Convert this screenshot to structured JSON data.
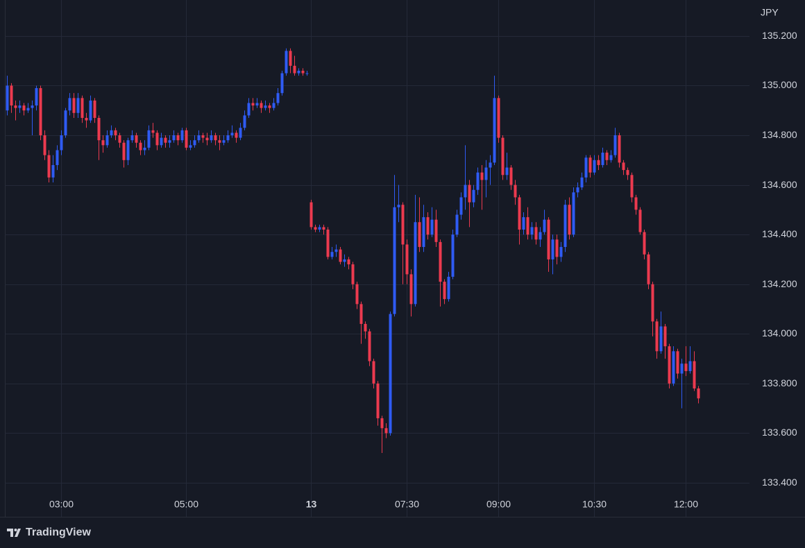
{
  "chart_data": {
    "type": "candlestick",
    "currency": "JPY",
    "brand": "TradingView",
    "up_color": "#2f5bf3",
    "down_color": "#ec3a4f",
    "grid": true,
    "ylim": [
      133.263,
      135.345
    ],
    "yticks": [
      {
        "value": 133.4,
        "label": "133.400"
      },
      {
        "value": 133.6,
        "label": "133.600"
      },
      {
        "value": 133.8,
        "label": "133.800"
      },
      {
        "value": 134.0,
        "label": "134.000"
      },
      {
        "value": 134.2,
        "label": "134.200"
      },
      {
        "value": 134.4,
        "label": "134.400"
      },
      {
        "value": 134.6,
        "label": "134.600"
      },
      {
        "value": 134.8,
        "label": "134.800"
      },
      {
        "value": 135.0,
        "label": "135.000"
      },
      {
        "value": 135.2,
        "label": "135.200"
      }
    ],
    "categories": [
      null,
      null,
      null,
      null,
      null,
      null,
      null,
      null,
      null,
      null,
      null,
      null,
      null,
      "03:00",
      null,
      null,
      null,
      null,
      null,
      null,
      null,
      null,
      null,
      null,
      null,
      null,
      null,
      null,
      null,
      null,
      null,
      null,
      null,
      null,
      null,
      null,
      null,
      null,
      null,
      null,
      null,
      null,
      null,
      "05:00",
      null,
      null,
      null,
      null,
      null,
      null,
      null,
      null,
      null,
      null,
      null,
      null,
      null,
      null,
      null,
      null,
      null,
      null,
      null,
      null,
      null,
      null,
      null,
      null,
      null,
      null,
      null,
      null,
      null,
      "13",
      null,
      null,
      null,
      null,
      null,
      null,
      null,
      null,
      null,
      null,
      null,
      null,
      null,
      null,
      null,
      null,
      null,
      null,
      null,
      null,
      null,
      null,
      "07:30",
      null,
      null,
      null,
      null,
      null,
      null,
      null,
      null,
      null,
      null,
      null,
      null,
      null,
      null,
      null,
      null,
      null,
      null,
      null,
      null,
      null,
      "09:00",
      null,
      null,
      null,
      null,
      null,
      null,
      null,
      null,
      null,
      null,
      null,
      null,
      null,
      null,
      null,
      null,
      null,
      null,
      null,
      null,
      null,
      null,
      "10:30",
      null,
      null,
      null,
      null,
      null,
      null,
      null,
      null,
      null,
      null,
      null,
      null,
      null,
      null,
      null,
      null,
      null,
      null,
      null,
      null,
      null,
      "12:00",
      null,
      null,
      null,
      null,
      null,
      null,
      null,
      null,
      null,
      null,
      null,
      null,
      null,
      null
    ],
    "bold_category": "13",
    "open": [
      134.9,
      135.0,
      134.92,
      134.91,
      134.92,
      134.9,
      134.91,
      134.92,
      134.99,
      134.8,
      134.72,
      134.63,
      134.68,
      134.74,
      134.8,
      134.9,
      134.95,
      134.89,
      134.95,
      134.87,
      134.86,
      134.94,
      134.87,
      134.78,
      134.76,
      134.8,
      134.82,
      134.8,
      134.77,
      134.7,
      134.78,
      134.8,
      134.77,
      134.74,
      134.75,
      134.82,
      134.81,
      134.76,
      134.79,
      134.77,
      134.78,
      134.8,
      134.78,
      134.82,
      134.75,
      134.76,
      134.78,
      134.8,
      134.79,
      134.78,
      134.8,
      134.78,
      134.77,
      134.78,
      134.8,
      134.81,
      134.79,
      134.83,
      134.88,
      134.93,
      134.92,
      134.93,
      134.91,
      134.92,
      134.91,
      134.93,
      134.97,
      135.05,
      135.14,
      135.08,
      135.05,
      135.06,
      135.05,
      134.53,
      134.43,
      134.42,
      134.43,
      134.42,
      134.31,
      134.33,
      134.34,
      134.29,
      134.3,
      134.28,
      134.2,
      134.12,
      134.04,
      134.01,
      133.89,
      133.8,
      133.66,
      133.62,
      133.6,
      134.08,
      134.51,
      134.52,
      134.36,
      134.24,
      134.12,
      134.45,
      134.35,
      134.47,
      134.4,
      134.46,
      134.37,
      134.21,
      134.14,
      134.23,
      134.4,
      134.48,
      134.55,
      134.6,
      134.53,
      134.58,
      134.65,
      134.62,
      134.67,
      134.69,
      134.95,
      134.79,
      134.64,
      134.67,
      134.6,
      134.55,
      134.42,
      134.47,
      134.4,
      134.43,
      134.38,
      134.41,
      134.46,
      134.3,
      134.38,
      134.31,
      134.35,
      134.52,
      134.4,
      134.57,
      134.59,
      134.63,
      134.71,
      134.65,
      134.7,
      134.68,
      134.73,
      134.7,
      134.72,
      134.8,
      134.69,
      134.66,
      134.64,
      134.55,
      134.5,
      134.41,
      134.32,
      134.2,
      134.05,
      133.93,
      134.03,
      133.95,
      133.8,
      133.93,
      133.84,
      133.88,
      133.85,
      133.89,
      133.78,
      null,
      null,
      null,
      null,
      null,
      null,
      null,
      null,
      null,
      null,
      null
    ],
    "high": [
      135.04,
      135.01,
      134.94,
      134.94,
      134.93,
      134.93,
      134.94,
      135.0,
      135.0,
      134.82,
      134.74,
      134.72,
      134.76,
      134.82,
      134.91,
      134.97,
      134.97,
      134.97,
      134.96,
      134.89,
      134.96,
      134.95,
      134.88,
      134.8,
      134.82,
      134.84,
      134.83,
      134.81,
      134.78,
      134.79,
      134.82,
      134.81,
      134.78,
      134.78,
      134.84,
      134.85,
      134.82,
      134.81,
      134.8,
      134.8,
      134.82,
      134.81,
      134.83,
      134.83,
      134.78,
      134.8,
      134.82,
      134.81,
      134.81,
      134.82,
      134.81,
      134.8,
      134.8,
      134.82,
      134.84,
      134.82,
      134.85,
      134.9,
      134.95,
      134.95,
      134.95,
      134.94,
      134.94,
      134.93,
      134.95,
      134.99,
      135.06,
      135.15,
      135.15,
      135.12,
      135.07,
      135.07,
      135.06,
      134.54,
      134.44,
      134.44,
      134.44,
      134.43,
      134.35,
      134.36,
      134.35,
      134.32,
      134.31,
      134.29,
      134.21,
      134.13,
      134.05,
      134.02,
      133.9,
      133.81,
      133.67,
      133.64,
      134.09,
      134.64,
      134.6,
      134.53,
      134.38,
      134.26,
      134.56,
      134.55,
      134.52,
      134.49,
      134.51,
      134.5,
      134.38,
      134.22,
      134.25,
      134.42,
      134.5,
      134.57,
      134.76,
      134.62,
      134.6,
      134.67,
      134.68,
      134.7,
      134.72,
      135.04,
      134.96,
      134.8,
      134.73,
      134.68,
      134.62,
      134.56,
      134.49,
      134.51,
      134.45,
      134.45,
      134.43,
      134.5,
      134.47,
      134.4,
      134.4,
      134.37,
      134.54,
      134.55,
      134.59,
      134.61,
      134.65,
      134.72,
      134.72,
      134.72,
      134.72,
      134.75,
      134.74,
      134.74,
      134.83,
      134.81,
      134.7,
      134.67,
      134.65,
      134.56,
      134.51,
      134.42,
      134.33,
      134.21,
      134.06,
      134.09,
      134.04,
      133.96,
      133.95,
      133.94,
      133.9,
      133.95,
      133.95,
      133.93,
      133.79,
      null,
      null,
      null,
      null,
      null,
      null,
      null,
      null,
      null,
      null,
      null
    ],
    "low": [
      134.88,
      134.89,
      134.86,
      134.89,
      134.88,
      134.89,
      134.8,
      134.9,
      134.78,
      134.7,
      134.61,
      134.61,
      134.66,
      134.72,
      134.79,
      134.88,
      134.87,
      134.87,
      134.85,
      134.83,
      134.85,
      134.85,
      134.7,
      134.73,
      134.75,
      134.79,
      134.78,
      134.75,
      134.67,
      134.68,
      134.77,
      134.75,
      134.72,
      134.72,
      134.74,
      134.79,
      134.74,
      134.75,
      134.75,
      134.75,
      134.77,
      134.76,
      134.77,
      134.74,
      134.74,
      134.75,
      134.77,
      134.77,
      134.76,
      134.77,
      134.76,
      134.74,
      134.76,
      134.77,
      134.79,
      134.77,
      134.78,
      134.82,
      134.87,
      134.9,
      134.91,
      134.89,
      134.9,
      134.89,
      134.9,
      134.92,
      134.96,
      135.04,
      135.05,
      135.04,
      135.04,
      135.04,
      135.04,
      134.42,
      134.41,
      134.41,
      134.4,
      134.3,
      134.3,
      134.31,
      134.28,
      134.27,
      134.26,
      134.18,
      134.1,
      133.96,
      133.98,
      133.87,
      133.78,
      133.63,
      133.52,
      133.58,
      133.59,
      134.07,
      134.45,
      134.2,
      134.2,
      134.07,
      134.11,
      134.33,
      134.33,
      134.38,
      134.39,
      134.35,
      134.11,
      134.12,
      134.13,
      134.22,
      134.39,
      134.46,
      134.5,
      134.43,
      134.51,
      134.56,
      134.5,
      134.55,
      134.6,
      134.68,
      134.77,
      134.62,
      134.62,
      134.58,
      134.52,
      134.36,
      134.4,
      134.38,
      134.38,
      134.36,
      134.35,
      134.4,
      134.25,
      134.24,
      134.28,
      134.29,
      134.33,
      134.38,
      134.39,
      134.55,
      134.58,
      134.61,
      134.63,
      134.64,
      134.66,
      134.67,
      134.68,
      134.69,
      134.71,
      134.67,
      134.64,
      134.62,
      134.53,
      134.48,
      134.4,
      134.3,
      134.18,
      133.99,
      133.9,
      133.92,
      133.9,
      133.78,
      133.79,
      133.82,
      133.7,
      133.83,
      133.84,
      133.77,
      133.72,
      null,
      null,
      null,
      null,
      null,
      null,
      null,
      null,
      null,
      null,
      null
    ],
    "close": [
      135.0,
      134.92,
      134.91,
      134.92,
      134.9,
      134.91,
      134.92,
      134.99,
      134.8,
      134.72,
      134.63,
      134.68,
      134.74,
      134.8,
      134.9,
      134.95,
      134.89,
      134.95,
      134.87,
      134.86,
      134.94,
      134.87,
      134.78,
      134.76,
      134.8,
      134.82,
      134.8,
      134.77,
      134.7,
      134.78,
      134.8,
      134.77,
      134.74,
      134.75,
      134.82,
      134.81,
      134.76,
      134.79,
      134.77,
      134.78,
      134.8,
      134.78,
      134.82,
      134.75,
      134.76,
      134.78,
      134.8,
      134.79,
      134.78,
      134.8,
      134.78,
      134.77,
      134.78,
      134.8,
      134.81,
      134.79,
      134.83,
      134.88,
      134.93,
      134.92,
      134.93,
      134.91,
      134.92,
      134.91,
      134.93,
      134.97,
      135.05,
      135.14,
      135.08,
      135.05,
      135.06,
      135.05,
      135.05,
      134.43,
      134.42,
      134.43,
      134.42,
      134.31,
      134.33,
      134.34,
      134.29,
      134.3,
      134.28,
      134.2,
      134.12,
      134.04,
      134.01,
      133.89,
      133.8,
      133.66,
      133.62,
      133.6,
      134.08,
      134.51,
      134.52,
      134.36,
      134.24,
      134.12,
      134.45,
      134.35,
      134.47,
      134.4,
      134.46,
      134.37,
      134.21,
      134.14,
      134.23,
      134.4,
      134.48,
      134.55,
      134.6,
      134.53,
      134.58,
      134.65,
      134.62,
      134.67,
      134.69,
      134.95,
      134.79,
      134.64,
      134.67,
      134.6,
      134.55,
      134.42,
      134.47,
      134.4,
      134.43,
      134.38,
      134.41,
      134.46,
      134.3,
      134.38,
      134.31,
      134.35,
      134.52,
      134.4,
      134.57,
      134.59,
      134.63,
      134.71,
      134.65,
      134.7,
      134.68,
      134.73,
      134.7,
      134.72,
      134.8,
      134.69,
      134.66,
      134.64,
      134.55,
      134.5,
      134.41,
      134.32,
      134.2,
      134.05,
      133.93,
      134.03,
      133.95,
      133.8,
      133.93,
      133.84,
      133.88,
      133.85,
      133.89,
      133.78,
      133.74,
      null,
      null,
      null,
      null,
      null,
      null,
      null,
      null,
      null,
      null,
      null
    ]
  }
}
